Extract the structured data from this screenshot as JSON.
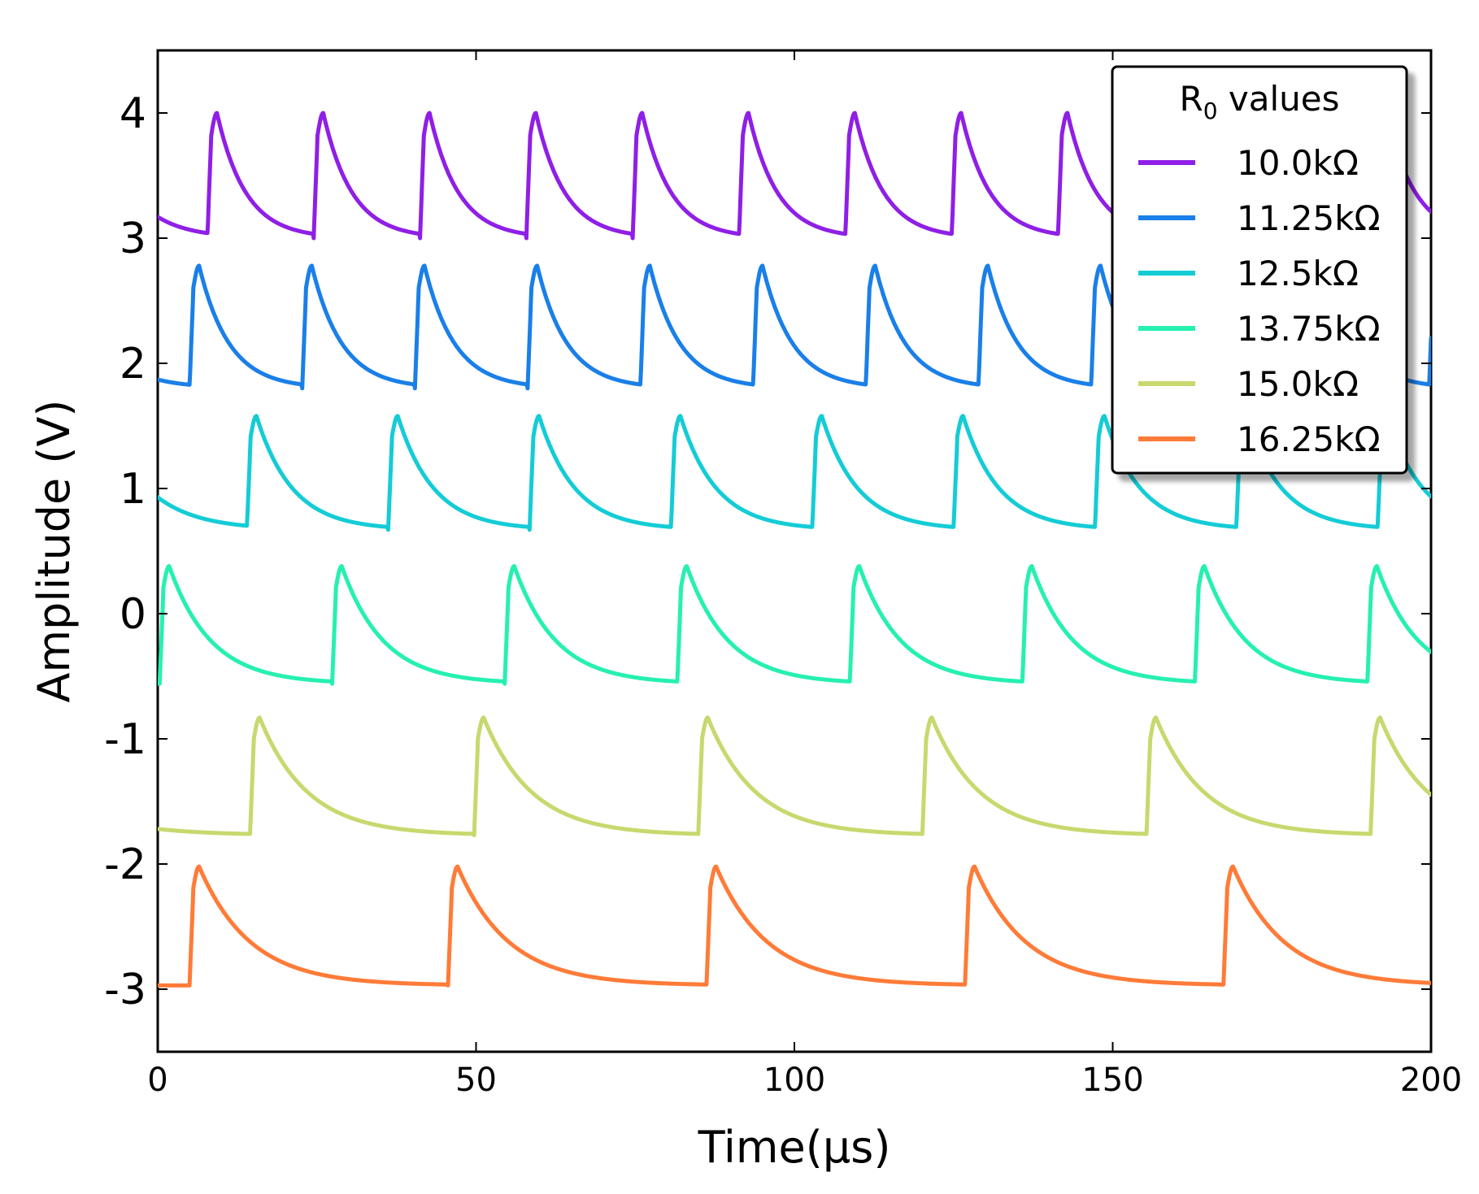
{
  "chart_data": {
    "type": "line",
    "title": "",
    "xlabel": "Time(µs)",
    "ylabel": "Amplitude (V)",
    "xlim": [
      0,
      200
    ],
    "ylim": [
      -3.5,
      4.5
    ],
    "xticks": [
      0,
      50,
      100,
      150,
      200
    ],
    "xtick_labels": [
      "0",
      "50",
      "100",
      "150",
      "200"
    ],
    "yticks": [
      4,
      3,
      2,
      1,
      0,
      -1,
      -2,
      -3
    ],
    "ytick_labels": [
      "4",
      "3",
      "2",
      "1",
      "0",
      "-1",
      "-2",
      "-3"
    ],
    "grid": false,
    "legend": {
      "title_main": "R",
      "title_sub": "0",
      "title_rest": " values",
      "placement": "top-right"
    },
    "series": [
      {
        "name": "10.0kΩ",
        "color": "#8f1fe6",
        "baseline": 3.0,
        "peak": 4.0,
        "period_us": 16.7,
        "first_spike_us": 7.8,
        "start_value": 3.17,
        "tau_us": 4.5
      },
      {
        "name": "11.25kΩ",
        "color": "#1a7fe8",
        "baseline": 1.8,
        "peak": 2.78,
        "period_us": 17.7,
        "first_spike_us": 5.0,
        "start_value": 1.87,
        "tau_us": 4.7
      },
      {
        "name": "12.5kΩ",
        "color": "#14ccd6",
        "baseline": 0.67,
        "peak": 1.58,
        "period_us": 22.2,
        "first_spike_us": 14.0,
        "start_value": 0.93,
        "tau_us": 5.6
      },
      {
        "name": "13.75kΩ",
        "color": "#26f0b0",
        "baseline": -0.56,
        "peak": 0.38,
        "period_us": 27.1,
        "first_spike_us": 0.3,
        "start_value": -0.56,
        "tau_us": 6.5
      },
      {
        "name": "15.0kΩ",
        "color": "#c9d86e",
        "baseline": -1.77,
        "peak": -0.83,
        "period_us": 35.2,
        "first_spike_us": 14.5,
        "start_value": -1.72,
        "tau_us": 7.5
      },
      {
        "name": "16.25kΩ",
        "color": "#ff7b38",
        "baseline": -2.97,
        "peak": -2.02,
        "period_us": 40.6,
        "first_spike_us": 5.0,
        "start_value": -2.97,
        "tau_us": 8.0
      }
    ]
  }
}
